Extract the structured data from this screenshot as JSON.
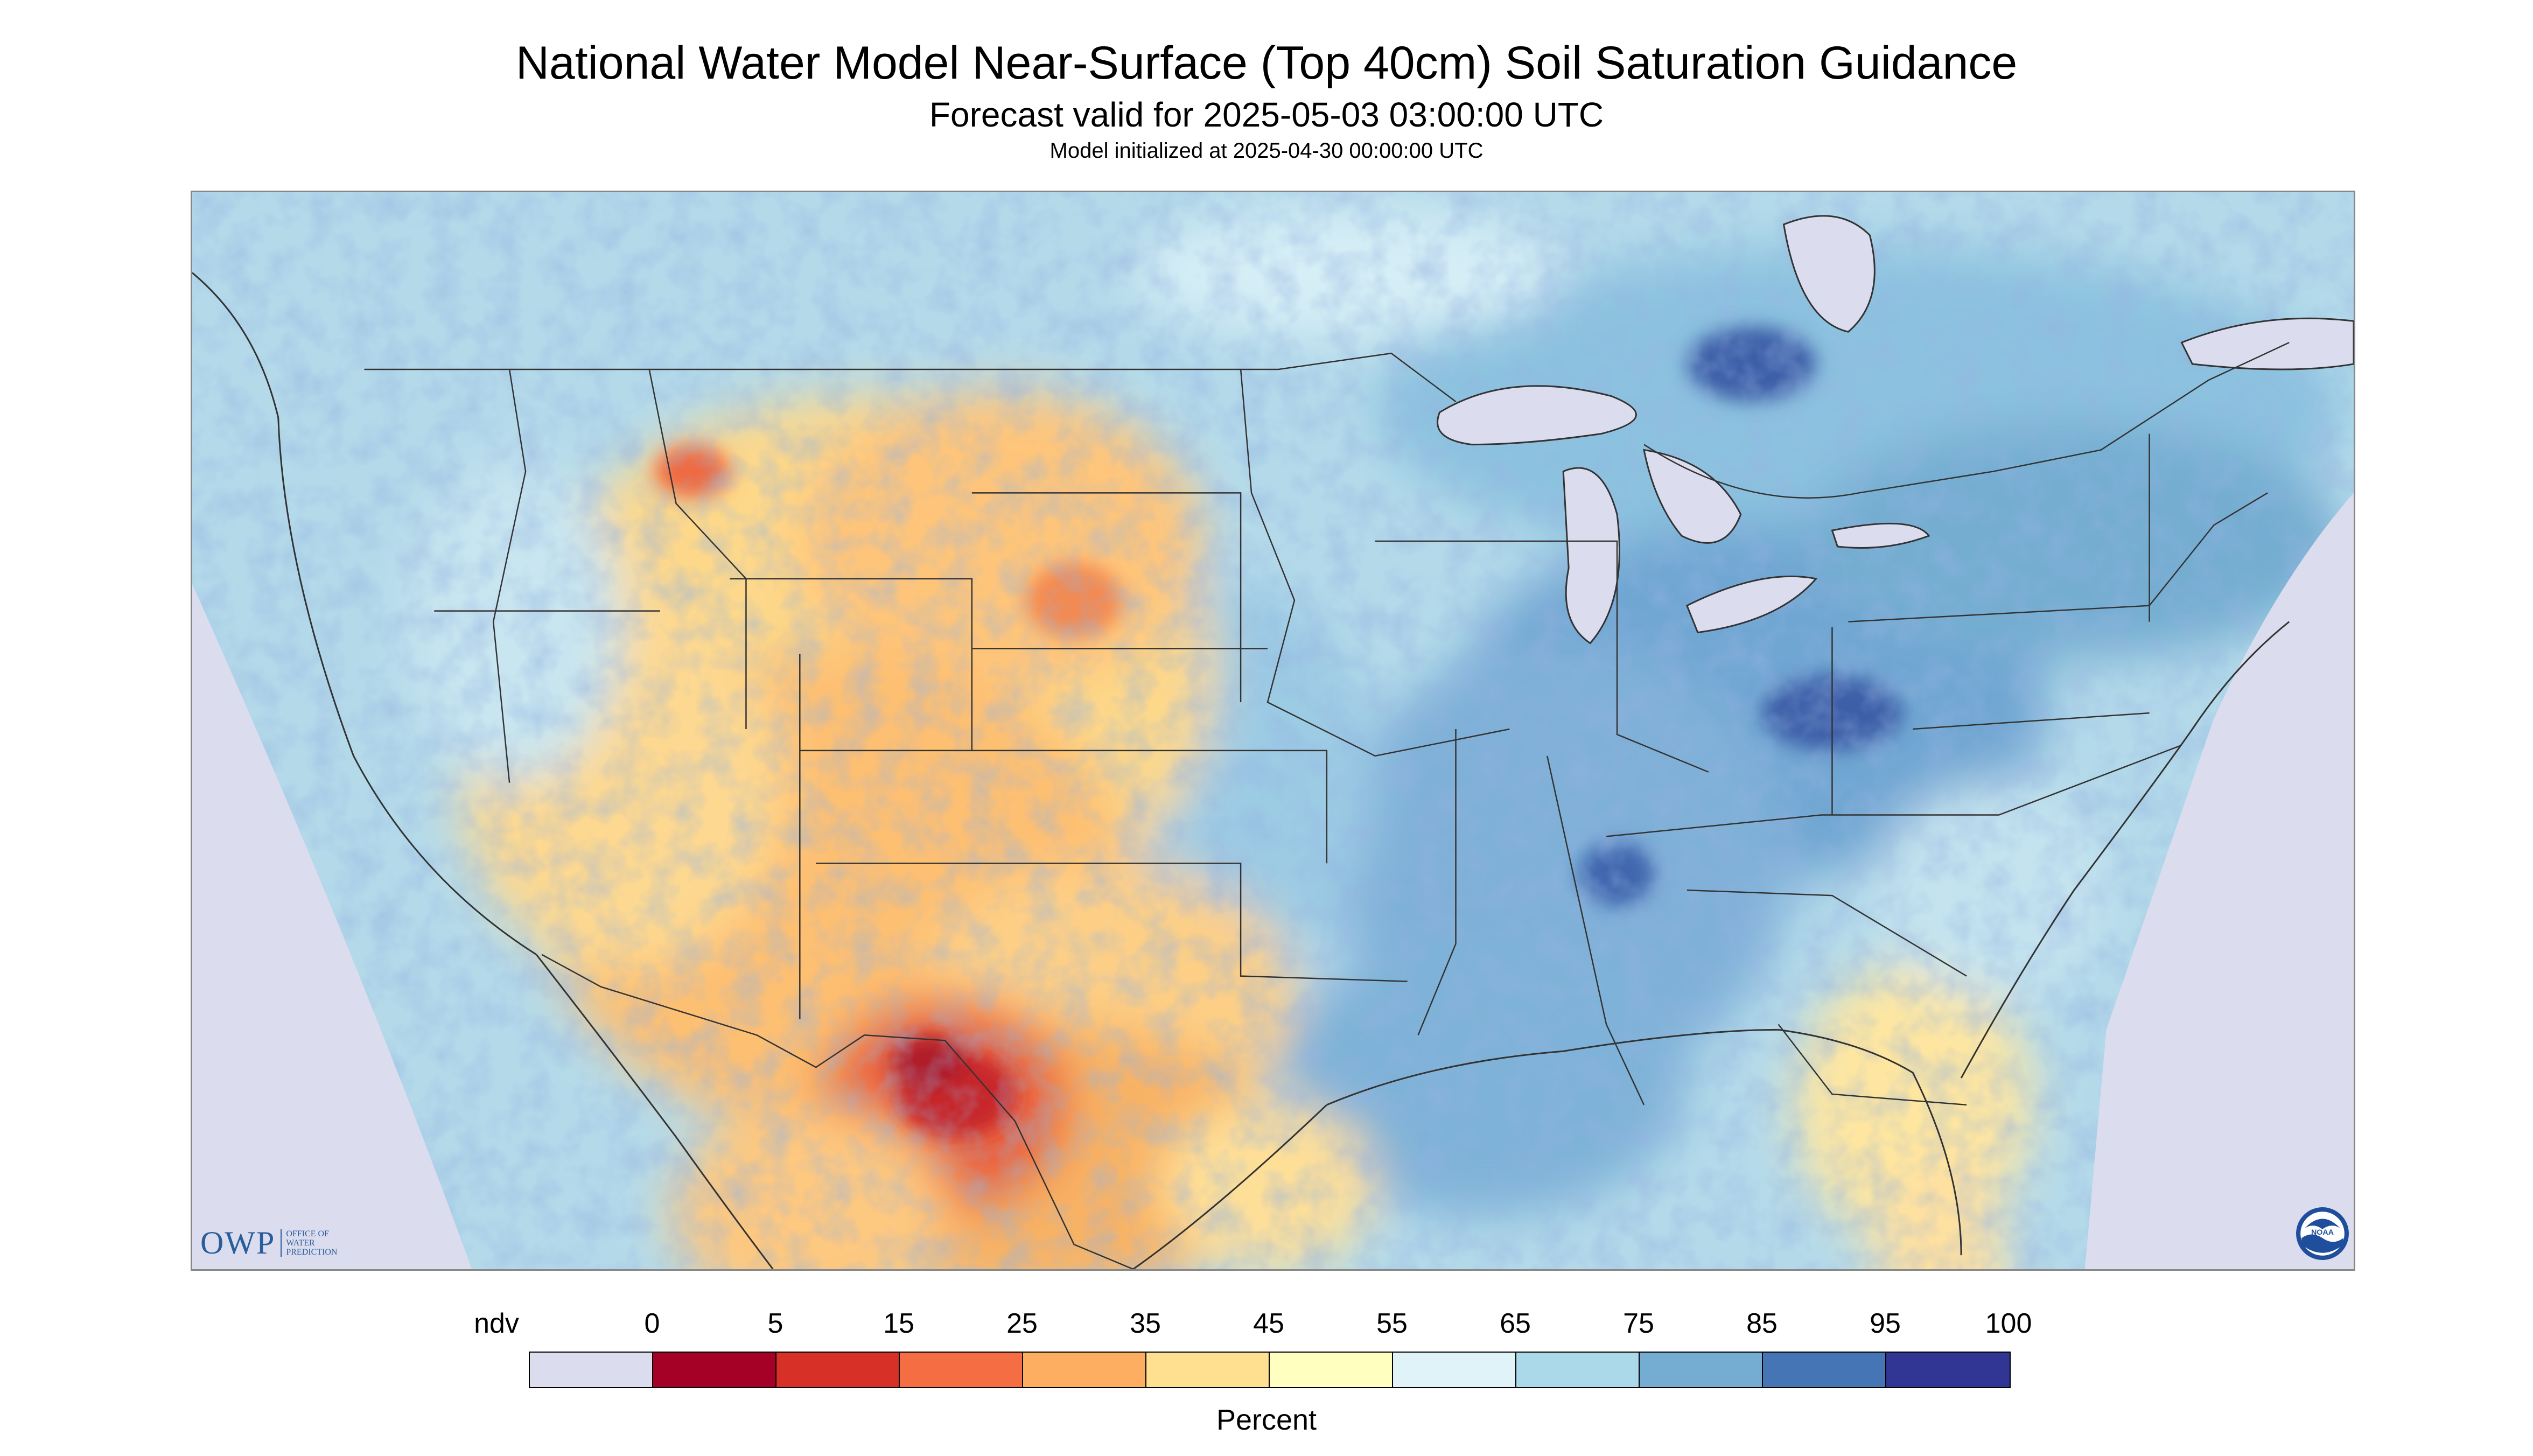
{
  "header": {
    "title": "National Water Model Near-Surface (Top 40cm) Soil Saturation Guidance",
    "subtitle": "Forecast valid for 2025-05-03 03:00:00 UTC",
    "init_line": "Model initialized at 2025-04-30 00:00:00 UTC"
  },
  "map": {
    "background_color": "#e0e0f0",
    "boundary_color": "#333333"
  },
  "logos": {
    "owp_text": "OWP",
    "owp_sub": [
      "OFFICE OF",
      "WATER",
      "PREDICTION"
    ],
    "noaa_text": "NOAA"
  },
  "legend": {
    "tick_labels": [
      "ndv",
      "0",
      "5",
      "15",
      "25",
      "35",
      "45",
      "55",
      "65",
      "75",
      "85",
      "95",
      "100"
    ],
    "colors": [
      "#dcdcef",
      "#a50026",
      "#d73027",
      "#f46d43",
      "#fdae61",
      "#fee090",
      "#ffffbf",
      "#e0f3f8",
      "#abd9e9",
      "#74add1",
      "#4575b4",
      "#313695"
    ],
    "unit": "Percent"
  }
}
